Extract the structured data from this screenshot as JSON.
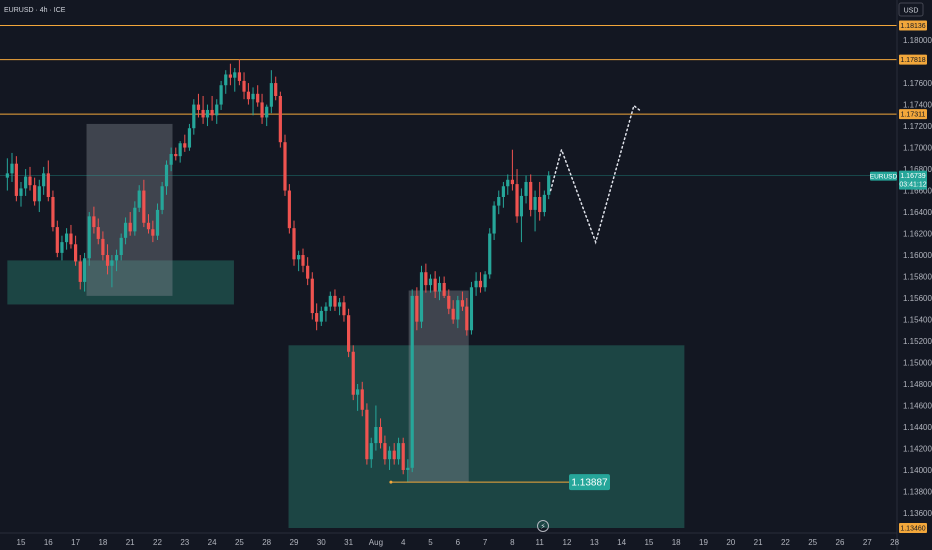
{
  "header": {
    "symbol": "EURUSD · 4h · ICE"
  },
  "axis": {
    "currency": "USD"
  },
  "chart_data": {
    "type": "candlestick",
    "ylim": [
      1.1346,
      1.1828
    ],
    "y_ticks": [
      "1.18000",
      "1.17600",
      "1.17400",
      "1.17200",
      "1.17000",
      "1.16800",
      "1.16600",
      "1.16400",
      "1.16200",
      "1.16000",
      "1.15800",
      "1.15600",
      "1.15400",
      "1.15200",
      "1.15000",
      "1.14800",
      "1.14600",
      "1.14400",
      "1.14200",
      "1.14000",
      "1.13800",
      "1.13600"
    ],
    "x_ticks": [
      "15",
      "16",
      "17",
      "18",
      "21",
      "22",
      "23",
      "24",
      "25",
      "28",
      "29",
      "30",
      "31",
      "Aug",
      "4",
      "5",
      "6",
      "7",
      "8",
      "11",
      "12",
      "13",
      "14",
      "15",
      "18",
      "19",
      "20",
      "21",
      "22",
      "25",
      "26",
      "27",
      "28"
    ],
    "levels": [
      {
        "label": "1.18136",
        "value": 1.18136,
        "color": "#f2a73b"
      },
      {
        "label": "1.17818",
        "value": 1.17818,
        "color": "#f2a73b"
      },
      {
        "label": "1.17311",
        "value": 1.17311,
        "color": "#f2a73b"
      }
    ],
    "current_price": {
      "label": "1.16739",
      "value": 1.16739,
      "name": "EURUSD",
      "countdown": "03:41:12"
    },
    "bottom_level": {
      "label": "1.13460",
      "value": 1.1346
    },
    "annotation": {
      "label": "1.13887",
      "value": 1.13887,
      "x_index": 13.55
    },
    "zones": [
      {
        "x_start": -0.5,
        "x_end": 7.8,
        "y_low": 1.1554,
        "y_high": 1.1595,
        "kind": "demand"
      },
      {
        "x_start": 9.8,
        "x_end": 24.3,
        "y_low": 1.1346,
        "y_high": 1.1516,
        "kind": "demand"
      }
    ],
    "boxes": [
      {
        "x_start": 2.4,
        "x_end": 5.55,
        "y_low": 1.1562,
        "y_high": 1.1722
      },
      {
        "x_start": 14.2,
        "x_end": 16.4,
        "y_low": 1.1389,
        "y_high": 1.1567
      }
    ],
    "projection": [
      {
        "x": 19.4,
        "y": 1.166
      },
      {
        "x": 19.8,
        "y": 1.1698
      },
      {
        "x": 21.05,
        "y": 1.1612
      },
      {
        "x": 22.45,
        "y": 1.1739
      },
      {
        "x": 22.7,
        "y": 1.1734
      }
    ],
    "ohlc": [
      [
        -0.5,
        1.1672,
        1.169,
        1.166,
        1.1676
      ],
      [
        -0.33,
        1.1676,
        1.1695,
        1.1668,
        1.1685
      ],
      [
        -0.17,
        1.1685,
        1.1692,
        1.165,
        1.1655
      ],
      [
        0.0,
        1.1655,
        1.1668,
        1.1645,
        1.1662
      ],
      [
        0.17,
        1.1662,
        1.168,
        1.1655,
        1.1673
      ],
      [
        0.33,
        1.1673,
        1.1682,
        1.166,
        1.1665
      ],
      [
        0.5,
        1.1665,
        1.1672,
        1.1646,
        1.165
      ],
      [
        0.67,
        1.165,
        1.167,
        1.164,
        1.1664
      ],
      [
        0.83,
        1.1664,
        1.1682,
        1.1656,
        1.1676
      ],
      [
        1.0,
        1.1676,
        1.1688,
        1.165,
        1.1654
      ],
      [
        1.17,
        1.1654,
        1.166,
        1.1622,
        1.1626
      ],
      [
        1.33,
        1.1626,
        1.1632,
        1.1598,
        1.1602
      ],
      [
        1.5,
        1.1602,
        1.1618,
        1.1595,
        1.1612
      ],
      [
        1.67,
        1.1612,
        1.1625,
        1.1605,
        1.162
      ],
      [
        1.83,
        1.162,
        1.1628,
        1.1606,
        1.161
      ],
      [
        2.0,
        1.161,
        1.1618,
        1.159,
        1.1594
      ],
      [
        2.17,
        1.1594,
        1.16,
        1.1568,
        1.1575
      ],
      [
        2.33,
        1.1575,
        1.1602,
        1.1566,
        1.1597
      ],
      [
        2.5,
        1.1597,
        1.164,
        1.159,
        1.1636
      ],
      [
        2.67,
        1.1636,
        1.1645,
        1.162,
        1.1626
      ],
      [
        2.83,
        1.1626,
        1.1634,
        1.161,
        1.1615
      ],
      [
        3.0,
        1.1615,
        1.1622,
        1.1595,
        1.16
      ],
      [
        3.17,
        1.16,
        1.161,
        1.1582,
        1.159
      ],
      [
        3.33,
        1.159,
        1.16,
        1.157,
        1.1595
      ],
      [
        3.5,
        1.1595,
        1.1605,
        1.1585,
        1.16
      ],
      [
        3.67,
        1.16,
        1.162,
        1.1595,
        1.1616
      ],
      [
        3.83,
        1.1616,
        1.1635,
        1.161,
        1.163
      ],
      [
        4.0,
        1.163,
        1.164,
        1.1618,
        1.1622
      ],
      [
        4.17,
        1.1622,
        1.165,
        1.1618,
        1.1644
      ],
      [
        4.33,
        1.1644,
        1.1665,
        1.164,
        1.166
      ],
      [
        4.5,
        1.166,
        1.167,
        1.1626,
        1.163
      ],
      [
        4.67,
        1.163,
        1.1638,
        1.162,
        1.1624
      ],
      [
        4.83,
        1.1624,
        1.1632,
        1.1612,
        1.1618
      ],
      [
        5.0,
        1.1618,
        1.1648,
        1.1614,
        1.1642
      ],
      [
        5.17,
        1.1642,
        1.1668,
        1.1638,
        1.1664
      ],
      [
        5.33,
        1.1664,
        1.1688,
        1.1656,
        1.1684
      ],
      [
        5.5,
        1.1684,
        1.17,
        1.1678,
        1.1694
      ],
      [
        5.67,
        1.1694,
        1.17,
        1.1688,
        1.1692
      ],
      [
        5.83,
        1.1692,
        1.1706,
        1.1686,
        1.1704
      ],
      [
        6.0,
        1.1704,
        1.1712,
        1.1696,
        1.17
      ],
      [
        6.17,
        1.17,
        1.1722,
        1.1697,
        1.1718
      ],
      [
        6.33,
        1.1718,
        1.1745,
        1.1712,
        1.174
      ],
      [
        6.5,
        1.174,
        1.175,
        1.1728,
        1.1735
      ],
      [
        6.67,
        1.1735,
        1.1748,
        1.1722,
        1.1728
      ],
      [
        6.83,
        1.1728,
        1.174,
        1.172,
        1.1735
      ],
      [
        7.0,
        1.1735,
        1.1748,
        1.1725,
        1.173
      ],
      [
        7.17,
        1.173,
        1.1745,
        1.1722,
        1.174
      ],
      [
        7.33,
        1.174,
        1.1762,
        1.1735,
        1.1758
      ],
      [
        7.5,
        1.1758,
        1.1772,
        1.175,
        1.1768
      ],
      [
        7.67,
        1.1768,
        1.1778,
        1.1758,
        1.1765
      ],
      [
        7.83,
        1.1765,
        1.1774,
        1.1752,
        1.177
      ],
      [
        8.0,
        1.177,
        1.1782,
        1.1758,
        1.1762
      ],
      [
        8.17,
        1.1762,
        1.177,
        1.1745,
        1.1752
      ],
      [
        8.33,
        1.1752,
        1.176,
        1.174,
        1.1745
      ],
      [
        8.5,
        1.1745,
        1.1756,
        1.173,
        1.175
      ],
      [
        8.67,
        1.175,
        1.1758,
        1.1738,
        1.1742
      ],
      [
        8.83,
        1.1742,
        1.175,
        1.1722,
        1.1728
      ],
      [
        9.0,
        1.1728,
        1.174,
        1.172,
        1.1738
      ],
      [
        9.17,
        1.1738,
        1.1772,
        1.1732,
        1.176
      ],
      [
        9.33,
        1.176,
        1.1766,
        1.1744,
        1.1748
      ],
      [
        9.5,
        1.1748,
        1.1752,
        1.17,
        1.1705
      ],
      [
        9.67,
        1.1705,
        1.1712,
        1.1655,
        1.166
      ],
      [
        9.83,
        1.166,
        1.1666,
        1.162,
        1.1625
      ],
      [
        10.0,
        1.1625,
        1.1632,
        1.159,
        1.1596
      ],
      [
        10.17,
        1.1596,
        1.1604,
        1.1585,
        1.16
      ],
      [
        10.33,
        1.16,
        1.1606,
        1.1584,
        1.159
      ],
      [
        10.5,
        1.159,
        1.1598,
        1.1572,
        1.1578
      ],
      [
        10.67,
        1.1578,
        1.1584,
        1.154,
        1.1546
      ],
      [
        10.83,
        1.1546,
        1.1555,
        1.153,
        1.1538
      ],
      [
        11.0,
        1.1538,
        1.1552,
        1.1534,
        1.1548
      ],
      [
        11.17,
        1.1548,
        1.1556,
        1.1538,
        1.1552
      ],
      [
        11.33,
        1.1552,
        1.1566,
        1.1548,
        1.1562
      ],
      [
        11.5,
        1.1562,
        1.1568,
        1.1548,
        1.1552
      ],
      [
        11.67,
        1.1552,
        1.156,
        1.1544,
        1.1556
      ],
      [
        11.83,
        1.1556,
        1.1562,
        1.1538,
        1.1544
      ],
      [
        12.0,
        1.1544,
        1.155,
        1.1505,
        1.151
      ],
      [
        12.17,
        1.151,
        1.1516,
        1.1465,
        1.147
      ],
      [
        12.33,
        1.147,
        1.148,
        1.1455,
        1.1475
      ],
      [
        12.5,
        1.1475,
        1.1482,
        1.145,
        1.1456
      ],
      [
        12.67,
        1.1456,
        1.1462,
        1.1405,
        1.141
      ],
      [
        12.83,
        1.141,
        1.143,
        1.1402,
        1.1425
      ],
      [
        13.0,
        1.1425,
        1.146,
        1.1418,
        1.144
      ],
      [
        13.17,
        1.144,
        1.1448,
        1.142,
        1.1425
      ],
      [
        13.33,
        1.1425,
        1.1432,
        1.1405,
        1.141
      ],
      [
        13.5,
        1.141,
        1.1422,
        1.14,
        1.1418
      ],
      [
        13.67,
        1.1418,
        1.1425,
        1.1405,
        1.141
      ],
      [
        13.83,
        1.141,
        1.143,
        1.1405,
        1.1425
      ],
      [
        14.0,
        1.1425,
        1.143,
        1.1396,
        1.14
      ],
      [
        14.17,
        1.14,
        1.141,
        1.1389,
        1.1402
      ],
      [
        14.33,
        1.1402,
        1.1568,
        1.1398,
        1.1562
      ],
      [
        14.5,
        1.1562,
        1.157,
        1.153,
        1.1538
      ],
      [
        14.67,
        1.1538,
        1.159,
        1.1532,
        1.1584
      ],
      [
        14.83,
        1.1584,
        1.1592,
        1.1565,
        1.1572
      ],
      [
        15.0,
        1.1572,
        1.1582,
        1.1565,
        1.1578
      ],
      [
        15.17,
        1.1578,
        1.1585,
        1.156,
        1.1566
      ],
      [
        15.33,
        1.1566,
        1.158,
        1.1558,
        1.1574
      ],
      [
        15.5,
        1.1574,
        1.158,
        1.156,
        1.1562
      ],
      [
        15.67,
        1.1562,
        1.1568,
        1.1545,
        1.155
      ],
      [
        15.83,
        1.155,
        1.1558,
        1.1536,
        1.154
      ],
      [
        16.0,
        1.154,
        1.1562,
        1.1532,
        1.1558
      ],
      [
        16.17,
        1.1558,
        1.1566,
        1.1548,
        1.1552
      ],
      [
        16.33,
        1.1552,
        1.156,
        1.1525,
        1.153
      ],
      [
        16.5,
        1.153,
        1.1575,
        1.1526,
        1.157
      ],
      [
        16.67,
        1.157,
        1.1584,
        1.1562,
        1.1576
      ],
      [
        16.83,
        1.1576,
        1.1584,
        1.1565,
        1.157
      ],
      [
        17.0,
        1.157,
        1.1585,
        1.1566,
        1.1582
      ],
      [
        17.17,
        1.1582,
        1.1625,
        1.1578,
        1.162
      ],
      [
        17.33,
        1.162,
        1.165,
        1.1614,
        1.1646
      ],
      [
        17.5,
        1.1646,
        1.166,
        1.1638,
        1.1654
      ],
      [
        17.67,
        1.1654,
        1.1668,
        1.1644,
        1.1664
      ],
      [
        17.83,
        1.1664,
        1.1675,
        1.1656,
        1.167
      ],
      [
        18.0,
        1.167,
        1.1698,
        1.166,
        1.1666
      ],
      [
        18.17,
        1.1666,
        1.168,
        1.163,
        1.1636
      ],
      [
        18.33,
        1.1636,
        1.1662,
        1.1612,
        1.1655
      ],
      [
        18.5,
        1.1655,
        1.1674,
        1.1648,
        1.1668
      ],
      [
        18.67,
        1.1668,
        1.1675,
        1.1636,
        1.1642
      ],
      [
        18.83,
        1.1642,
        1.166,
        1.1622,
        1.1654
      ],
      [
        19.0,
        1.1654,
        1.1668,
        1.1632,
        1.164
      ],
      [
        19.17,
        1.164,
        1.166,
        1.1636,
        1.1656
      ],
      [
        19.33,
        1.1656,
        1.1678,
        1.1652,
        1.1674
      ]
    ]
  }
}
